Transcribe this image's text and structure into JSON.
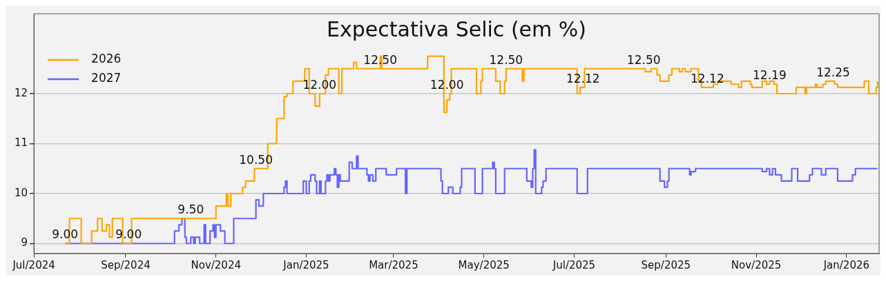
{
  "chart_data": {
    "type": "step",
    "title": "Expectativa Selic (em %)",
    "xlim": [
      "2024-07-01",
      "2026-01-23"
    ],
    "xticks": [
      {
        "value": "2024-07-01",
        "label": "Jul/2024"
      },
      {
        "value": "2024-09-01",
        "label": "Sep/2024"
      },
      {
        "value": "2024-11-01",
        "label": "Nov/2024"
      },
      {
        "value": "2025-01-01",
        "label": "Jan/2025"
      },
      {
        "value": "2025-03-01",
        "label": "Mar/2025"
      },
      {
        "value": "2025-05-01",
        "label": "May/2025"
      },
      {
        "value": "2025-07-01",
        "label": "Jul/2025"
      },
      {
        "value": "2025-09-01",
        "label": "Sep/2025"
      },
      {
        "value": "2025-11-01",
        "label": "Nov/2025"
      },
      {
        "value": "2026-01-01",
        "label": "Jan/2026"
      }
    ],
    "ylim": [
      8.8,
      13.6
    ],
    "yticks": [
      9,
      10,
      11,
      12
    ],
    "grid": "y",
    "legend": "top left",
    "series": [
      {
        "name": "2026",
        "color": "#ffa500",
        "x": [
          "2024-07-22",
          "2024-07-25",
          "2024-08-02",
          "2024-08-09",
          "2024-08-13",
          "2024-08-16",
          "2024-08-19",
          "2024-08-21",
          "2024-08-23",
          "2024-08-30",
          "2024-09-05",
          "2024-11-01",
          "2024-11-08",
          "2024-11-09",
          "2024-11-11",
          "2024-11-19",
          "2024-11-21",
          "2024-11-27",
          "2024-12-06",
          "2024-12-12",
          "2024-12-17",
          "2024-12-19",
          "2024-12-23",
          "2024-12-31",
          "2025-01-03",
          "2025-01-07",
          "2025-01-10",
          "2025-01-14",
          "2025-01-16",
          "2025-01-23",
          "2025-01-25",
          "2025-02-02",
          "2025-02-04",
          "2025-02-20",
          "2025-02-21",
          "2025-03-24",
          "2025-04-04",
          "2025-04-06",
          "2025-04-08",
          "2025-04-09",
          "2025-04-26",
          "2025-04-29",
          "2025-04-30",
          "2025-05-09",
          "2025-05-12",
          "2025-05-15",
          "2025-05-16",
          "2025-05-27",
          "2025-05-28",
          "2025-07-03",
          "2025-07-05",
          "2025-07-08",
          "2025-08-18",
          "2025-08-22",
          "2025-08-26",
          "2025-08-28",
          "2025-09-03",
          "2025-09-05",
          "2025-09-10",
          "2025-09-12",
          "2025-09-14",
          "2025-09-18",
          "2025-09-23",
          "2025-09-25",
          "2025-10-03",
          "2025-10-06",
          "2025-10-15",
          "2025-10-20",
          "2025-10-22",
          "2025-10-28",
          "2025-10-29",
          "2025-11-05",
          "2025-11-08",
          "2025-11-10",
          "2025-11-13",
          "2025-11-15",
          "2025-11-28",
          "2025-12-04",
          "2025-12-05",
          "2025-12-11",
          "2025-12-12",
          "2025-12-16",
          "2025-12-18",
          "2025-12-24",
          "2025-12-26",
          "2026-01-13",
          "2026-01-16",
          "2026-01-21",
          "2026-01-22"
        ],
        "values": [
          9.0,
          9.5,
          9.0,
          9.25,
          9.5,
          9.25,
          9.375,
          9.125,
          9.5,
          9.0,
          9.5,
          9.75,
          10.0,
          9.75,
          10.0,
          10.125,
          10.25,
          10.5,
          11.0,
          11.5,
          11.94,
          12.0,
          12.25,
          12.5,
          12.0,
          11.75,
          12.0,
          12.375,
          12.5,
          12.0,
          12.5,
          12.625,
          12.5,
          12.75,
          12.5,
          12.75,
          11.625,
          11.875,
          12.0,
          12.5,
          12.0,
          12.25,
          12.5,
          12.25,
          12.0,
          12.25,
          12.5,
          12.25,
          12.5,
          12.0,
          12.125,
          12.5,
          12.44,
          12.5,
          12.375,
          12.25,
          12.375,
          12.5,
          12.44,
          12.5,
          12.44,
          12.5,
          12.25,
          12.125,
          12.19,
          12.25,
          12.19,
          12.125,
          12.25,
          12.19,
          12.125,
          12.25,
          12.19,
          12.25,
          12.19,
          12.0,
          12.125,
          12.0,
          12.125,
          12.19,
          12.125,
          12.19,
          12.25,
          12.19,
          12.125,
          12.25,
          12.0,
          12.125,
          12.25
        ]
      },
      {
        "name": "2027",
        "color": "#6464ff",
        "x": [
          "2024-07-22",
          "2024-10-04",
          "2024-10-07",
          "2024-10-09",
          "2024-10-11",
          "2024-10-12",
          "2024-10-15",
          "2024-10-17",
          "2024-10-18",
          "2024-10-21",
          "2024-10-24",
          "2024-10-25",
          "2024-10-28",
          "2024-10-30",
          "2024-10-31",
          "2024-11-01",
          "2024-11-04",
          "2024-11-07",
          "2024-11-13",
          "2024-11-28",
          "2024-11-30",
          "2024-12-03",
          "2024-12-17",
          "2024-12-18",
          "2024-12-19",
          "2024-12-30",
          "2025-01-01",
          "2025-01-02",
          "2025-01-03",
          "2025-01-04",
          "2025-01-07",
          "2025-01-08",
          "2025-01-10",
          "2025-01-11",
          "2025-01-14",
          "2025-01-15",
          "2025-01-16",
          "2025-01-17",
          "2025-01-20",
          "2025-01-21",
          "2025-01-22",
          "2025-01-23",
          "2025-01-24",
          "2025-01-30",
          "2025-02-01",
          "2025-02-04",
          "2025-02-05",
          "2025-02-11",
          "2025-02-12",
          "2025-02-13",
          "2025-02-15",
          "2025-02-17",
          "2025-02-24",
          "2025-03-03",
          "2025-03-09",
          "2025-03-10",
          "2025-04-02",
          "2025-04-03",
          "2025-04-07",
          "2025-04-10",
          "2025-04-15",
          "2025-04-16",
          "2025-04-25",
          "2025-04-30",
          "2025-05-07",
          "2025-05-08",
          "2025-05-09",
          "2025-05-15",
          "2025-05-30",
          "2025-06-02",
          "2025-06-03",
          "2025-06-04",
          "2025-06-05",
          "2025-06-09",
          "2025-06-10",
          "2025-06-12",
          "2025-07-03",
          "2025-07-10",
          "2025-08-28",
          "2025-08-31",
          "2025-09-02",
          "2025-09-03",
          "2025-09-17",
          "2025-09-18",
          "2025-09-21",
          "2025-11-05",
          "2025-11-08",
          "2025-11-10",
          "2025-11-12",
          "2025-11-14",
          "2025-11-18",
          "2025-11-25",
          "2025-11-29",
          "2025-12-07",
          "2025-12-09",
          "2025-12-15",
          "2025-12-18",
          "2025-12-26",
          "2026-01-05",
          "2026-01-07",
          "2026-01-22"
        ],
        "values": [
          9.0,
          9.25,
          9.375,
          9.5,
          9.125,
          9.0,
          9.125,
          9.0,
          9.125,
          9.0,
          9.375,
          9.0,
          9.25,
          9.375,
          9.125,
          9.375,
          9.25,
          9.0,
          9.5,
          9.875,
          9.75,
          10.0,
          10.125,
          10.25,
          10.0,
          10.25,
          10.0,
          10.0,
          10.25,
          10.375,
          10.25,
          10.0,
          10.25,
          10.0,
          10.25,
          10.375,
          10.25,
          10.375,
          10.5,
          10.375,
          10.125,
          10.375,
          10.25,
          10.625,
          10.5,
          10.75,
          10.5,
          10.375,
          10.25,
          10.375,
          10.25,
          10.5,
          10.375,
          10.5,
          10.0,
          10.5,
          10.25,
          10.0,
          10.125,
          10.0,
          10.125,
          10.5,
          10.0,
          10.5,
          10.625,
          10.5,
          10.0,
          10.5,
          10.25,
          10.125,
          10.5,
          10.875,
          10.0,
          10.125,
          10.25,
          10.5,
          10.0,
          10.5,
          10.25,
          10.125,
          10.25,
          10.5,
          10.375,
          10.44,
          10.5,
          10.44,
          10.5,
          10.375,
          10.5,
          10.375,
          10.25,
          10.5,
          10.25,
          10.375,
          10.5,
          10.375,
          10.5,
          10.25,
          10.375,
          10.5,
          10.5
        ]
      }
    ],
    "annotations": [
      {
        "text": "9.00",
        "x": "2024-07-22",
        "y": 9.0
      },
      {
        "text": "9.00",
        "x": "2024-09-03",
        "y": 9.0
      },
      {
        "text": "9.50",
        "x": "2024-10-15",
        "y": 9.5
      },
      {
        "text": "10.50",
        "x": "2024-11-28",
        "y": 10.5
      },
      {
        "text": "12.00",
        "x": "2025-01-10",
        "y": 12.0
      },
      {
        "text": "12.50",
        "x": "2025-02-20",
        "y": 12.5
      },
      {
        "text": "12.00",
        "x": "2025-04-06",
        "y": 12.0
      },
      {
        "text": "12.50",
        "x": "2025-05-16",
        "y": 12.5
      },
      {
        "text": "12.12",
        "x": "2025-07-07",
        "y": 12.12
      },
      {
        "text": "12.50",
        "x": "2025-08-17",
        "y": 12.5
      },
      {
        "text": "12.12",
        "x": "2025-09-29",
        "y": 12.12
      },
      {
        "text": "12.19",
        "x": "2025-11-10",
        "y": 12.19
      },
      {
        "text": "12.25",
        "x": "2025-12-23",
        "y": 12.25
      }
    ]
  }
}
